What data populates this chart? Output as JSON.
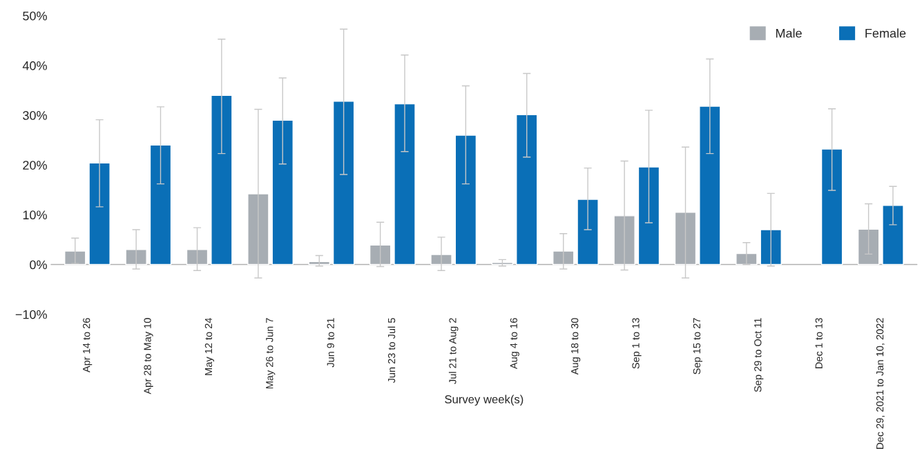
{
  "chart_data": {
    "type": "bar",
    "xlabel": "Survey week(s)",
    "categories": [
      "Apr 14 to 26",
      "Apr 28 to May 10",
      "May 12 to 24",
      "May 26 to Jun 7",
      "Jun 9 to 21",
      "Jun 23 to Jul 5",
      "Jul 21 to Aug 2",
      "Aug 4 to 16",
      "Aug 18 to 30",
      "Sep 1 to 13",
      "Sep 15 to 27",
      "Sep 29 to Oct 11",
      "Dec 1 to 13",
      "Dec 29, 2021 to Jan 10, 2022"
    ],
    "series": [
      {
        "name": "Male",
        "color": "#a7adb3",
        "values": [
          2.7,
          3.0,
          3.0,
          14.2,
          0.6,
          3.9,
          2.0,
          0.4,
          2.7,
          9.8,
          10.5,
          2.2,
          null,
          7.1
        ],
        "errors": [
          [
            0.2,
            5.3
          ],
          [
            -0.9,
            7.0
          ],
          [
            -1.2,
            7.4
          ],
          [
            -2.7,
            31.2
          ],
          [
            -0.3,
            1.8
          ],
          [
            -0.4,
            8.5
          ],
          [
            -1.2,
            5.5
          ],
          [
            -0.3,
            1.0
          ],
          [
            -0.9,
            6.2
          ],
          [
            -1.1,
            20.8
          ],
          [
            -2.7,
            23.6
          ],
          [
            0.0,
            4.4
          ],
          null,
          [
            2.1,
            12.2
          ]
        ]
      },
      {
        "name": "Female",
        "color": "#0a6fb7",
        "values": [
          20.4,
          24.0,
          34.0,
          29.0,
          32.8,
          32.3,
          26.0,
          30.1,
          13.1,
          19.6,
          31.8,
          7.0,
          23.2,
          11.9
        ],
        "errors": [
          [
            11.6,
            29.1
          ],
          [
            16.2,
            31.7
          ],
          [
            22.3,
            45.3
          ],
          [
            20.2,
            37.5
          ],
          [
            18.1,
            47.3
          ],
          [
            22.7,
            42.1
          ],
          [
            16.2,
            35.9
          ],
          [
            21.6,
            38.4
          ],
          [
            7.0,
            19.4
          ],
          [
            8.4,
            31.0
          ],
          [
            22.3,
            41.3
          ],
          [
            -0.3,
            14.3
          ],
          [
            14.9,
            31.3
          ],
          [
            8.0,
            15.7
          ]
        ]
      }
    ],
    "ylim": [
      -10,
      50
    ],
    "yticks": [
      {
        "value": -10,
        "label": "−10%"
      },
      {
        "value": 0,
        "label": "0%"
      },
      {
        "value": 10,
        "label": "10%"
      },
      {
        "value": 20,
        "label": "20%"
      },
      {
        "value": 30,
        "label": "30%"
      },
      {
        "value": 40,
        "label": "40%"
      },
      {
        "value": 50,
        "label": "50%"
      }
    ],
    "ref_lines": [
      {
        "axis": "y",
        "value": 0,
        "color": "#b0b0b0"
      }
    ],
    "grid": false,
    "legend": "top right"
  }
}
